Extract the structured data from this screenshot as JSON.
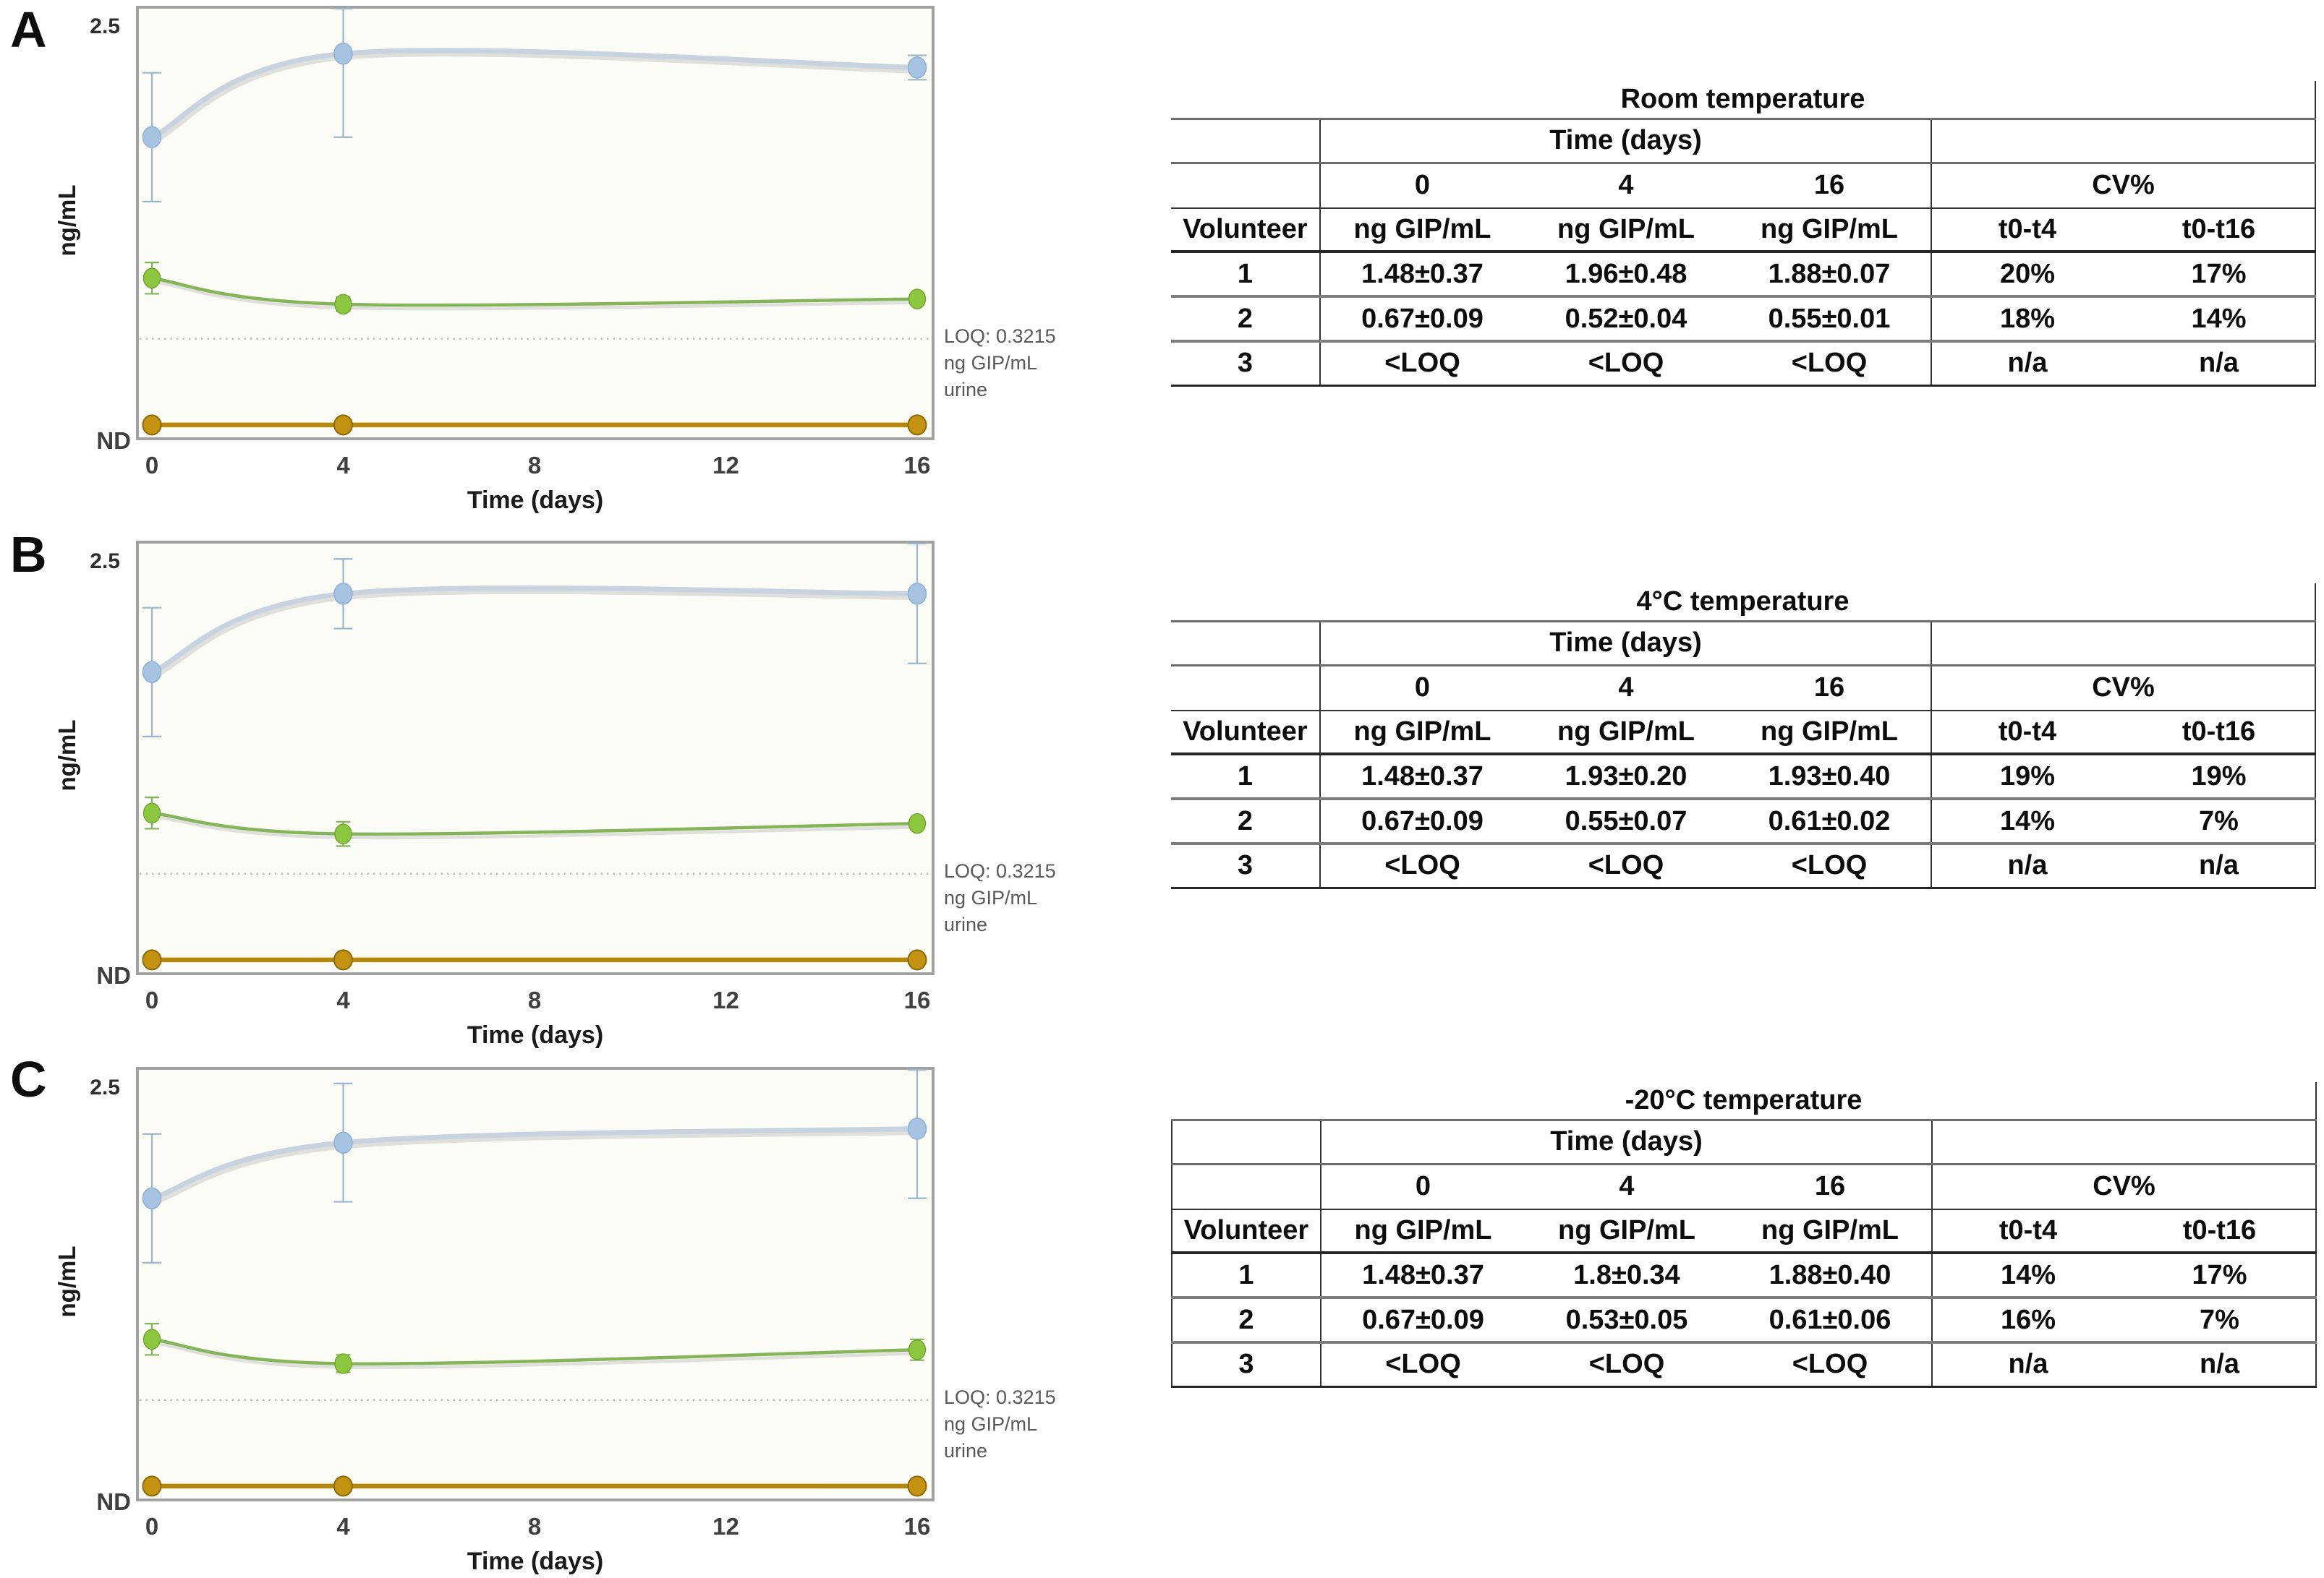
{
  "figure": {
    "y_axis": {
      "label": "ng/mL",
      "top_tick_label": "2.5",
      "bottom_label": "ND"
    },
    "x_axis": {
      "label": "Time (days)",
      "tick_labels": [
        "0",
        "4",
        "8",
        "12",
        "16"
      ]
    },
    "loq_annotation_lines": [
      "LOQ: 0.3215",
      "ng GIP/mL",
      "urine"
    ],
    "panels": [
      {
        "label": "A",
        "table": {
          "title": "Room temperature",
          "time_group_header": "Time (days)",
          "cv_group_header": "CV%",
          "time_columns": [
            "0",
            "4",
            "16"
          ],
          "volunteer_header": "Volunteer",
          "unit_header": "ng GIP/mL",
          "cv_columns": [
            "t0-t4",
            "t0-t16"
          ],
          "rows": [
            [
              "1",
              "1.48±0.37",
              "1.96±0.48",
              "1.88±0.07",
              "20%",
              "17%"
            ],
            [
              "2",
              "0.67±0.09",
              "0.52±0.04",
              "0.55±0.01",
              "18%",
              "14%"
            ],
            [
              "3",
              "<LOQ",
              "<LOQ",
              "<LOQ",
              "n/a",
              "n/a"
            ]
          ]
        }
      },
      {
        "label": "B",
        "table": {
          "title": "4°C temperature",
          "time_group_header": "Time (days)",
          "cv_group_header": "CV%",
          "time_columns": [
            "0",
            "4",
            "16"
          ],
          "volunteer_header": "Volunteer",
          "unit_header": "ng GIP/mL",
          "cv_columns": [
            "t0-t4",
            "t0-t16"
          ],
          "rows": [
            [
              "1",
              "1.48±0.37",
              "1.93±0.20",
              "1.93±0.40",
              "19%",
              "19%"
            ],
            [
              "2",
              "0.67±0.09",
              "0.55±0.07",
              "0.61±0.02",
              "14%",
              "7%"
            ],
            [
              "3",
              "<LOQ",
              "<LOQ",
              "<LOQ",
              "n/a",
              "n/a"
            ]
          ]
        }
      },
      {
        "label": "C",
        "table": {
          "title": "-20°C temperature",
          "time_group_header": "Time (days)",
          "cv_group_header": "CV%",
          "time_columns": [
            "0",
            "4",
            "16"
          ],
          "volunteer_header": "Volunteer",
          "unit_header": "ng GIP/mL",
          "cv_columns": [
            "t0-t4",
            "t0-t16"
          ],
          "rows": [
            [
              "1",
              "1.48±0.37",
              "1.8±0.34",
              "1.88±0.40",
              "14%",
              "17%"
            ],
            [
              "2",
              "0.67±0.09",
              "0.53±0.05",
              "0.61±0.06",
              "16%",
              "7%"
            ],
            [
              "3",
              "<LOQ",
              "<LOQ",
              "<LOQ",
              "n/a",
              "n/a"
            ]
          ]
        }
      }
    ]
  },
  "chart_data": [
    {
      "id": "A",
      "type": "line",
      "title": "Room temperature urine GIP stability",
      "x": [
        0,
        4,
        16
      ],
      "x_ticks": [
        0,
        4,
        8,
        12,
        16
      ],
      "xlabel": "Time (days)",
      "ylabel": "ng/mL",
      "y_top_tick_label": "2.5",
      "y_bottom_label": "ND",
      "ylim": [
        "ND",
        2.5
      ],
      "grid": false,
      "loq": {
        "value": 0.3215,
        "annotation": [
          "LOQ: 0.3215",
          "ng GIP/mL",
          "urine"
        ]
      },
      "series": [
        {
          "name": "Volunteer 1",
          "marker_color": "#a6c3e1",
          "line_color": "#c8d3df",
          "values": [
            1.48,
            1.96,
            1.88
          ],
          "sd": [
            0.37,
            0.48,
            0.07
          ]
        },
        {
          "name": "Volunteer 2",
          "marker_color": "#8dc63f",
          "line_color": "#85b55a",
          "values": [
            0.67,
            0.52,
            0.55
          ],
          "sd": [
            0.09,
            0.04,
            0.01
          ]
        },
        {
          "name": "Volunteer 3",
          "marker_color": "#c29210",
          "line_color": "#b5880e",
          "values": [
            "<LOQ",
            "<LOQ",
            "<LOQ"
          ],
          "sd": [
            null,
            null,
            null
          ]
        }
      ]
    },
    {
      "id": "B",
      "type": "line",
      "title": "4°C temperature urine GIP stability",
      "x": [
        0,
        4,
        16
      ],
      "x_ticks": [
        0,
        4,
        8,
        12,
        16
      ],
      "xlabel": "Time (days)",
      "ylabel": "ng/mL",
      "y_top_tick_label": "2.5",
      "y_bottom_label": "ND",
      "ylim": [
        "ND",
        2.5
      ],
      "grid": false,
      "loq": {
        "value": 0.3215,
        "annotation": [
          "LOQ: 0.3215",
          "ng GIP/mL",
          "urine"
        ]
      },
      "series": [
        {
          "name": "Volunteer 1",
          "marker_color": "#a6c3e1",
          "line_color": "#c8d3df",
          "values": [
            1.48,
            1.93,
            1.93
          ],
          "sd": [
            0.37,
            0.2,
            0.4
          ]
        },
        {
          "name": "Volunteer 2",
          "marker_color": "#8dc63f",
          "line_color": "#85b55a",
          "values": [
            0.67,
            0.55,
            0.61
          ],
          "sd": [
            0.09,
            0.07,
            0.02
          ]
        },
        {
          "name": "Volunteer 3",
          "marker_color": "#c29210",
          "line_color": "#b5880e",
          "values": [
            "<LOQ",
            "<LOQ",
            "<LOQ"
          ],
          "sd": [
            null,
            null,
            null
          ]
        }
      ]
    },
    {
      "id": "C",
      "type": "line",
      "title": "-20°C temperature urine GIP stability",
      "x": [
        0,
        4,
        16
      ],
      "x_ticks": [
        0,
        4,
        8,
        12,
        16
      ],
      "xlabel": "Time (days)",
      "ylabel": "ng/mL",
      "y_top_tick_label": "2.5",
      "y_bottom_label": "ND",
      "ylim": [
        "ND",
        2.5
      ],
      "grid": false,
      "loq": {
        "value": 0.3215,
        "annotation": [
          "LOQ: 0.3215",
          "ng GIP/mL",
          "urine"
        ]
      },
      "series": [
        {
          "name": "Volunteer 1",
          "marker_color": "#a6c3e1",
          "line_color": "#c8d3df",
          "values": [
            1.48,
            1.8,
            1.88
          ],
          "sd": [
            0.37,
            0.34,
            0.4
          ]
        },
        {
          "name": "Volunteer 2",
          "marker_color": "#8dc63f",
          "line_color": "#85b55a",
          "values": [
            0.67,
            0.53,
            0.61
          ],
          "sd": [
            0.09,
            0.05,
            0.06
          ]
        },
        {
          "name": "Volunteer 3",
          "marker_color": "#c29210",
          "line_color": "#b5880e",
          "values": [
            "<LOQ",
            "<LOQ",
            "<LOQ"
          ],
          "sd": [
            null,
            null,
            null
          ]
        }
      ]
    }
  ],
  "colors": {
    "volunteer1_marker": "#a6c3e1",
    "volunteer2_marker": "#8dc63f",
    "volunteer3_marker": "#c29210",
    "axis_frame": "#a2a2a2",
    "loq_dotted_line": "#bfbfbf",
    "annotation_text": "#595959"
  }
}
